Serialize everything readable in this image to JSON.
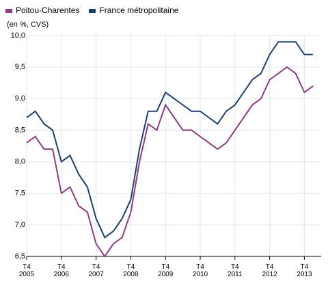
{
  "chart_data": {
    "type": "line",
    "subtitle": "(en %, CVS)",
    "categories": [
      "T4 2005",
      null,
      null,
      null,
      "T4 2006",
      null,
      null,
      null,
      "T4 2007",
      null,
      null,
      null,
      "T4 2008",
      null,
      null,
      null,
      "T4 2009",
      null,
      null,
      null,
      "T4 2010",
      null,
      null,
      null,
      "T4 2011",
      null,
      null,
      null,
      "T4 2012",
      null,
      null,
      null,
      "T4 2013",
      null
    ],
    "series": [
      {
        "name": "Poitou-Charentes",
        "color": "#8e3b7f",
        "values": [
          8.3,
          8.4,
          8.2,
          8.2,
          7.5,
          7.6,
          7.3,
          7.2,
          6.7,
          6.5,
          6.7,
          6.8,
          7.2,
          8.0,
          8.6,
          8.5,
          8.9,
          8.7,
          8.5,
          8.5,
          8.4,
          8.3,
          8.2,
          8.3,
          8.5,
          8.7,
          8.9,
          9.0,
          9.3,
          9.4,
          9.5,
          9.4,
          9.1,
          9.2
        ]
      },
      {
        "name": "France métropolitaine",
        "color": "#1f3d6b",
        "values": [
          8.7,
          8.8,
          8.6,
          8.5,
          8.0,
          8.1,
          7.8,
          7.6,
          7.1,
          6.8,
          6.9,
          7.1,
          7.4,
          8.2,
          8.8,
          8.8,
          9.1,
          9.0,
          8.9,
          8.8,
          8.8,
          8.7,
          8.6,
          8.8,
          8.9,
          9.1,
          9.3,
          9.4,
          9.7,
          9.9,
          9.9,
          9.9,
          9.7,
          9.7
        ]
      }
    ],
    "ylim": [
      6.5,
      10.0
    ],
    "yticks": [
      {
        "value": 6.5,
        "label": "6,5"
      },
      {
        "value": 7.0,
        "label": "7,0"
      },
      {
        "value": 7.5,
        "label": "7,5"
      },
      {
        "value": 8.0,
        "label": "8,0"
      },
      {
        "value": 8.5,
        "label": "8,5"
      },
      {
        "value": 9.0,
        "label": "9,0"
      },
      {
        "value": 9.5,
        "label": "9,5"
      },
      {
        "value": 10.0,
        "label": "10,0"
      }
    ],
    "grid": true
  }
}
